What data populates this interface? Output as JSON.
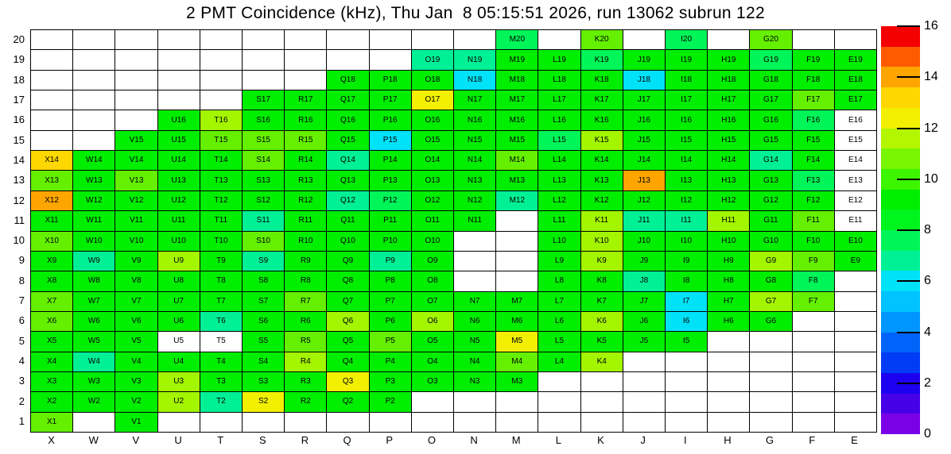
{
  "title": "2 PMT Coincidence (kHz), Thu Jan  8 05:15:51 2026, run 13062 subrun 122",
  "chart_data": {
    "type": "heatmap",
    "title": "2 PMT Coincidence (kHz), Thu Jan  8 05:15:51 2026, run 13062 subrun 122",
    "run": "13062",
    "subrun": "122",
    "timestamp": "Thu Jan  8 05:15:51 2026",
    "columns": [
      "X",
      "W",
      "V",
      "U",
      "T",
      "S",
      "R",
      "Q",
      "P",
      "O",
      "N",
      "M",
      "L",
      "K",
      "J",
      "I",
      "H",
      "G",
      "F",
      "E"
    ],
    "row_labels": [
      "20",
      "19",
      "18",
      "17",
      "16",
      "15",
      "14",
      "13",
      "12",
      "11",
      "10",
      "9",
      "8",
      "7",
      "6",
      "5",
      "4",
      "3",
      "2",
      "1"
    ],
    "palette": {
      "g": "#00EE00",
      "lg": "#64F000",
      "yg": "#A4F500",
      "y": "#F2F000",
      "gold": "#FFD700",
      "o": "#FFA500",
      "sg": "#00F558",
      "tq": "#00F096",
      "cy": "#00E2F8",
      "w": "#FFFFFF"
    },
    "palette_values_khz": {
      "g": "~9",
      "lg": "~10.8",
      "yg": "~11.6",
      "y": "~12.4",
      "gold": "~13.2",
      "o": "~14",
      "sg": "~7.6",
      "tq": "~6.8",
      "cy": "~6",
      "w": "no data"
    },
    "colorbar": {
      "min": 0,
      "max": 16,
      "tick_labels": [
        0,
        2,
        4,
        6,
        8,
        10,
        12,
        14,
        16
      ],
      "colors_bottom_to_top": [
        "#7A00E8",
        "#4600E8",
        "#1E00F0",
        "#003CF5",
        "#0064FA",
        "#0096FF",
        "#00C3FF",
        "#00E2F8",
        "#00F096",
        "#00F558",
        "#00F51E",
        "#00EE00",
        "#3CF500",
        "#78F500",
        "#B4F500",
        "#F2F000",
        "#FFD700",
        "#FFA500",
        "#FF5A00",
        "#F50000"
      ]
    },
    "grid": [
      [
        null,
        null,
        null,
        null,
        null,
        null,
        null,
        null,
        null,
        null,
        null,
        [
          "M20",
          "sg"
        ],
        null,
        [
          "K20",
          "lg"
        ],
        null,
        [
          "I20",
          "sg"
        ],
        null,
        [
          "G20",
          "lg"
        ],
        null,
        null
      ],
      [
        null,
        null,
        null,
        null,
        null,
        null,
        null,
        null,
        null,
        [
          "O19",
          "tq"
        ],
        [
          "N19",
          "tq"
        ],
        [
          "M19",
          "g"
        ],
        [
          "L19",
          "g"
        ],
        [
          "K19",
          "sg"
        ],
        [
          "J19",
          "g"
        ],
        [
          "I19",
          "g"
        ],
        [
          "H19",
          "g"
        ],
        [
          "G19",
          "sg"
        ],
        [
          "F19",
          "g"
        ],
        [
          "E19",
          "g"
        ]
      ],
      [
        null,
        null,
        null,
        null,
        null,
        null,
        null,
        [
          "Q18",
          "g"
        ],
        [
          "P18",
          "g"
        ],
        [
          "O18",
          "g"
        ],
        [
          "N18",
          "cy"
        ],
        [
          "M18",
          "g"
        ],
        [
          "L18",
          "g"
        ],
        [
          "K18",
          "g"
        ],
        [
          "J18",
          "cy"
        ],
        [
          "I18",
          "g"
        ],
        [
          "H18",
          "g"
        ],
        [
          "G18",
          "g"
        ],
        [
          "F18",
          "g"
        ],
        [
          "E18",
          "g"
        ]
      ],
      [
        null,
        null,
        null,
        null,
        null,
        [
          "S17",
          "g"
        ],
        [
          "R17",
          "g"
        ],
        [
          "Q17",
          "g"
        ],
        [
          "P17",
          "g"
        ],
        [
          "O17",
          "y"
        ],
        [
          "N17",
          "g"
        ],
        [
          "M17",
          "g"
        ],
        [
          "L17",
          "g"
        ],
        [
          "K17",
          "g"
        ],
        [
          "J17",
          "g"
        ],
        [
          "I17",
          "g"
        ],
        [
          "H17",
          "g"
        ],
        [
          "G17",
          "g"
        ],
        [
          "F17",
          "lg"
        ],
        [
          "E17",
          "g"
        ]
      ],
      [
        null,
        null,
        null,
        [
          "U16",
          "g"
        ],
        [
          "T16",
          "yg"
        ],
        [
          "S16",
          "g"
        ],
        [
          "R16",
          "g"
        ],
        [
          "Q16",
          "g"
        ],
        [
          "P16",
          "g"
        ],
        [
          "O16",
          "g"
        ],
        [
          "N16",
          "g"
        ],
        [
          "M16",
          "g"
        ],
        [
          "L16",
          "g"
        ],
        [
          "K16",
          "g"
        ],
        [
          "J16",
          "g"
        ],
        [
          "I16",
          "g"
        ],
        [
          "H16",
          "g"
        ],
        [
          "G16",
          "g"
        ],
        [
          "F16",
          "sg"
        ],
        [
          "E16",
          "w"
        ]
      ],
      [
        null,
        null,
        [
          "V15",
          "g"
        ],
        [
          "U15",
          "g"
        ],
        [
          "T15",
          "lg"
        ],
        [
          "S15",
          "lg"
        ],
        [
          "R15",
          "lg"
        ],
        [
          "Q15",
          "g"
        ],
        [
          "P15",
          "cy"
        ],
        [
          "O15",
          "g"
        ],
        [
          "N15",
          "g"
        ],
        [
          "M15",
          "g"
        ],
        [
          "L15",
          "sg"
        ],
        [
          "K15",
          "yg"
        ],
        [
          "J15",
          "g"
        ],
        [
          "I15",
          "g"
        ],
        [
          "H15",
          "g"
        ],
        [
          "G15",
          "g"
        ],
        [
          "F15",
          "g"
        ],
        [
          "E15",
          "w"
        ]
      ],
      [
        [
          "X14",
          "gold"
        ],
        [
          "W14",
          "g"
        ],
        [
          "V14",
          "g"
        ],
        [
          "U14",
          "g"
        ],
        [
          "T14",
          "g"
        ],
        [
          "S14",
          "lg"
        ],
        [
          "R14",
          "g"
        ],
        [
          "Q14",
          "tq"
        ],
        [
          "P14",
          "g"
        ],
        [
          "O14",
          "g"
        ],
        [
          "N14",
          "g"
        ],
        [
          "M14",
          "lg"
        ],
        [
          "L14",
          "g"
        ],
        [
          "K14",
          "g"
        ],
        [
          "J14",
          "g"
        ],
        [
          "I14",
          "g"
        ],
        [
          "H14",
          "g"
        ],
        [
          "G14",
          "tq"
        ],
        [
          "F14",
          "g"
        ],
        [
          "E14",
          "w"
        ]
      ],
      [
        [
          "X13",
          "lg"
        ],
        [
          "W13",
          "g"
        ],
        [
          "V13",
          "lg"
        ],
        [
          "U13",
          "g"
        ],
        [
          "T13",
          "g"
        ],
        [
          "S13",
          "g"
        ],
        [
          "R13",
          "g"
        ],
        [
          "Q13",
          "g"
        ],
        [
          "P13",
          "g"
        ],
        [
          "O13",
          "g"
        ],
        [
          "N13",
          "g"
        ],
        [
          "M13",
          "g"
        ],
        [
          "L13",
          "g"
        ],
        [
          "K13",
          "g"
        ],
        [
          "J13",
          "o"
        ],
        [
          "I13",
          "g"
        ],
        [
          "H13",
          "g"
        ],
        [
          "G13",
          "g"
        ],
        [
          "F13",
          "sg"
        ],
        [
          "E13",
          "w"
        ]
      ],
      [
        [
          "X12",
          "o"
        ],
        [
          "W12",
          "g"
        ],
        [
          "V12",
          "g"
        ],
        [
          "U12",
          "g"
        ],
        [
          "T12",
          "g"
        ],
        [
          "S12",
          "g"
        ],
        [
          "R12",
          "g"
        ],
        [
          "Q12",
          "tq"
        ],
        [
          "P12",
          "sg"
        ],
        [
          "O12",
          "g"
        ],
        [
          "N12",
          "g"
        ],
        [
          "M12",
          "tq"
        ],
        [
          "L12",
          "g"
        ],
        [
          "K12",
          "g"
        ],
        [
          "J12",
          "g"
        ],
        [
          "I12",
          "g"
        ],
        [
          "H12",
          "g"
        ],
        [
          "G12",
          "g"
        ],
        [
          "F12",
          "g"
        ],
        [
          "E12",
          "w"
        ]
      ],
      [
        [
          "X11",
          "g"
        ],
        [
          "W11",
          "g"
        ],
        [
          "V11",
          "g"
        ],
        [
          "U11",
          "g"
        ],
        [
          "T11",
          "g"
        ],
        [
          "S11",
          "tq"
        ],
        [
          "R11",
          "g"
        ],
        [
          "Q11",
          "g"
        ],
        [
          "P11",
          "g"
        ],
        [
          "O11",
          "g"
        ],
        [
          "N11",
          "g"
        ],
        null,
        [
          "L11",
          "g"
        ],
        [
          "K11",
          "yg"
        ],
        [
          "J11",
          "tq"
        ],
        [
          "I11",
          "tq"
        ],
        [
          "H11",
          "yg"
        ],
        [
          "G11",
          "g"
        ],
        [
          "F11",
          "lg"
        ],
        [
          "E11",
          "w"
        ]
      ],
      [
        [
          "X10",
          "lg"
        ],
        [
          "W10",
          "g"
        ],
        [
          "V10",
          "g"
        ],
        [
          "U10",
          "g"
        ],
        [
          "T10",
          "g"
        ],
        [
          "S10",
          "lg"
        ],
        [
          "R10",
          "g"
        ],
        [
          "Q10",
          "g"
        ],
        [
          "P10",
          "g"
        ],
        [
          "O10",
          "g"
        ],
        null,
        null,
        [
          "L10",
          "g"
        ],
        [
          "K10",
          "yg"
        ],
        [
          "J10",
          "g"
        ],
        [
          "I10",
          "g"
        ],
        [
          "H10",
          "g"
        ],
        [
          "G10",
          "g"
        ],
        [
          "F10",
          "g"
        ],
        [
          "E10",
          "g"
        ]
      ],
      [
        [
          "X9",
          "g"
        ],
        [
          "W9",
          "tq"
        ],
        [
          "V9",
          "g"
        ],
        [
          "U9",
          "yg"
        ],
        [
          "T9",
          "g"
        ],
        [
          "S9",
          "tq"
        ],
        [
          "R9",
          "g"
        ],
        [
          "Q9",
          "g"
        ],
        [
          "P9",
          "tq"
        ],
        [
          "O9",
          "g"
        ],
        null,
        null,
        [
          "L9",
          "g"
        ],
        [
          "K9",
          "yg"
        ],
        [
          "J9",
          "g"
        ],
        [
          "I9",
          "g"
        ],
        [
          "H9",
          "g"
        ],
        [
          "G9",
          "yg"
        ],
        [
          "F9",
          "lg"
        ],
        [
          "E9",
          "g"
        ]
      ],
      [
        [
          "X8",
          "g"
        ],
        [
          "W8",
          "g"
        ],
        [
          "V8",
          "g"
        ],
        [
          "U8",
          "g"
        ],
        [
          "T8",
          "g"
        ],
        [
          "S8",
          "g"
        ],
        [
          "R8",
          "g"
        ],
        [
          "Q8",
          "g"
        ],
        [
          "P8",
          "g"
        ],
        [
          "O8",
          "g"
        ],
        null,
        null,
        [
          "L8",
          "g"
        ],
        [
          "K8",
          "g"
        ],
        [
          "J8",
          "tq"
        ],
        [
          "I8",
          "g"
        ],
        [
          "H8",
          "g"
        ],
        [
          "G8",
          "g"
        ],
        [
          "F8",
          "sg"
        ],
        null
      ],
      [
        [
          "X7",
          "lg"
        ],
        [
          "W7",
          "g"
        ],
        [
          "V7",
          "g"
        ],
        [
          "U7",
          "g"
        ],
        [
          "T7",
          "g"
        ],
        [
          "S7",
          "g"
        ],
        [
          "R7",
          "lg"
        ],
        [
          "Q7",
          "g"
        ],
        [
          "P7",
          "g"
        ],
        [
          "O7",
          "g"
        ],
        [
          "N7",
          "g"
        ],
        [
          "M7",
          "g"
        ],
        [
          "L7",
          "g"
        ],
        [
          "K7",
          "g"
        ],
        [
          "J7",
          "g"
        ],
        [
          "I7",
          "cy"
        ],
        [
          "H7",
          "g"
        ],
        [
          "G7",
          "yg"
        ],
        [
          "F7",
          "lg"
        ],
        null
      ],
      [
        [
          "X6",
          "lg"
        ],
        [
          "W6",
          "g"
        ],
        [
          "V6",
          "g"
        ],
        [
          "U6",
          "g"
        ],
        [
          "T6",
          "tq"
        ],
        [
          "S6",
          "g"
        ],
        [
          "R6",
          "g"
        ],
        [
          "Q6",
          "yg"
        ],
        [
          "P6",
          "g"
        ],
        [
          "O6",
          "yg"
        ],
        [
          "N6",
          "g"
        ],
        [
          "M6",
          "g"
        ],
        [
          "L6",
          "g"
        ],
        [
          "K6",
          "yg"
        ],
        [
          "J6",
          "g"
        ],
        [
          "I6",
          "cy"
        ],
        [
          "H6",
          "g"
        ],
        [
          "G6",
          "g"
        ],
        null,
        null
      ],
      [
        [
          "X5",
          "g"
        ],
        [
          "W5",
          "g"
        ],
        [
          "V5",
          "g"
        ],
        [
          "U5",
          "w"
        ],
        [
          "T5",
          "w"
        ],
        [
          "S5",
          "g"
        ],
        [
          "R5",
          "lg"
        ],
        [
          "Q5",
          "g"
        ],
        [
          "P5",
          "lg"
        ],
        [
          "O5",
          "g"
        ],
        [
          "N5",
          "g"
        ],
        [
          "M5",
          "y"
        ],
        [
          "L5",
          "g"
        ],
        [
          "K5",
          "g"
        ],
        [
          "J5",
          "g"
        ],
        [
          "I5",
          "g"
        ],
        null,
        null,
        null,
        null
      ],
      [
        [
          "X4",
          "g"
        ],
        [
          "W4",
          "tq"
        ],
        [
          "V4",
          "g"
        ],
        [
          "U4",
          "g"
        ],
        [
          "T4",
          "g"
        ],
        [
          "S4",
          "g"
        ],
        [
          "R4",
          "yg"
        ],
        [
          "Q4",
          "g"
        ],
        [
          "P4",
          "g"
        ],
        [
          "O4",
          "g"
        ],
        [
          "N4",
          "g"
        ],
        [
          "M4",
          "lg"
        ],
        [
          "L4",
          "g"
        ],
        [
          "K4",
          "yg"
        ],
        null,
        null,
        null,
        null,
        null,
        null
      ],
      [
        [
          "X3",
          "g"
        ],
        [
          "W3",
          "g"
        ],
        [
          "V3",
          "g"
        ],
        [
          "U3",
          "yg"
        ],
        [
          "T3",
          "g"
        ],
        [
          "S3",
          "g"
        ],
        [
          "R3",
          "g"
        ],
        [
          "Q3",
          "y"
        ],
        [
          "P3",
          "g"
        ],
        [
          "O3",
          "g"
        ],
        [
          "N3",
          "g"
        ],
        [
          "M3",
          "g"
        ],
        null,
        null,
        null,
        null,
        null,
        null,
        null,
        null
      ],
      [
        [
          "X2",
          "g"
        ],
        [
          "W2",
          "g"
        ],
        [
          "V2",
          "g"
        ],
        [
          "U2",
          "yg"
        ],
        [
          "T2",
          "tq"
        ],
        [
          "S2",
          "y"
        ],
        [
          "R2",
          "g"
        ],
        [
          "Q2",
          "g"
        ],
        [
          "P2",
          "g"
        ],
        null,
        null,
        null,
        null,
        null,
        null,
        null,
        null,
        null,
        null,
        null
      ],
      [
        [
          "X1",
          "lg"
        ],
        null,
        [
          "V1",
          "g"
        ],
        null,
        null,
        null,
        null,
        null,
        null,
        null,
        null,
        null,
        null,
        null,
        null,
        null,
        null,
        null,
        null,
        null
      ]
    ]
  }
}
